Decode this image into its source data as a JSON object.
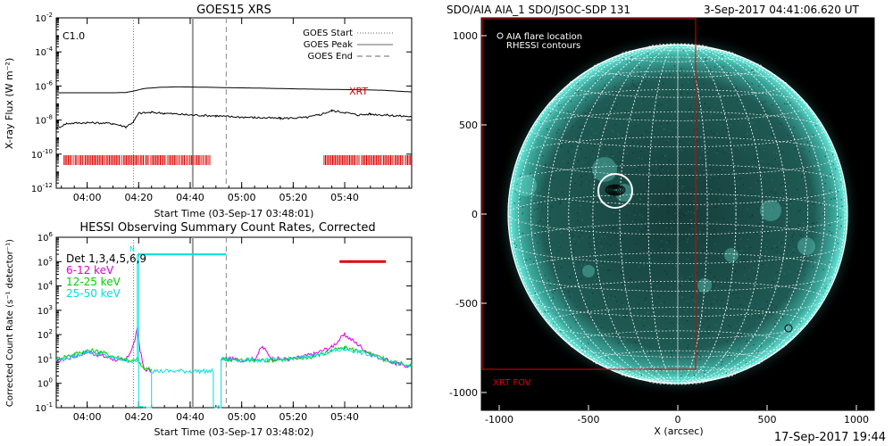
{
  "footer": {
    "timestamp": "17-Sep-2017 19:44"
  },
  "chart_data": [
    {
      "id": "goes",
      "type": "line",
      "title": "GOES15 XRS",
      "ylabel": "X-ray Flux (W m⁻²)",
      "xlabel": "Start Time (03-Sep-17 03:48:01)",
      "y_scale": "log",
      "ylim_exp": [
        -12,
        -2
      ],
      "y_tick_exponents": [
        -12,
        -10,
        -8,
        -6,
        -4,
        -2
      ],
      "xlim_min": [
        -12,
        126
      ],
      "x_ticks": [
        {
          "label": "04:00",
          "t": 0
        },
        {
          "label": "04:20",
          "t": 20
        },
        {
          "label": "04:40",
          "t": 40
        },
        {
          "label": "05:00",
          "t": 60
        },
        {
          "label": "05:20",
          "t": 80
        },
        {
          "label": "05:40",
          "t": 100
        }
      ],
      "flare_class": "C1.0",
      "legend": [
        "GOES Start",
        "GOES Peak",
        "GOES End"
      ],
      "markers": {
        "start": 18,
        "peak": 41,
        "end": 54
      },
      "xrt_label": "XRT",
      "xrt_intervals": [
        [
          -9,
          48
        ],
        [
          92,
          126
        ]
      ],
      "series": [
        {
          "name": "long",
          "color": "#000000",
          "x": [
            -12,
            0,
            10,
            15,
            18,
            22,
            28,
            35,
            45,
            55,
            65,
            75,
            85,
            95,
            105,
            115,
            120,
            126
          ],
          "y_exp": [
            -6.4,
            -6.4,
            -6.4,
            -6.38,
            -6.3,
            -6.15,
            -6.08,
            -6.05,
            -6.07,
            -6.1,
            -6.12,
            -6.15,
            -6.18,
            -6.2,
            -6.22,
            -6.25,
            -6.3,
            -6.35
          ]
        },
        {
          "name": "short",
          "color": "#000000",
          "x": [
            -12,
            -8,
            0,
            10,
            15,
            18,
            20,
            25,
            30,
            40,
            50,
            55,
            65,
            75,
            85,
            90,
            95,
            100,
            105,
            110,
            115,
            120,
            126
          ],
          "y_exp": [
            -8.5,
            -8.2,
            -8.15,
            -8.2,
            -8.4,
            -8.1,
            -7.6,
            -7.55,
            -7.6,
            -7.7,
            -7.75,
            -7.8,
            -7.85,
            -7.9,
            -7.85,
            -7.7,
            -7.45,
            -7.55,
            -7.7,
            -7.65,
            -7.7,
            -7.75,
            -7.8
          ]
        }
      ]
    },
    {
      "id": "hessi",
      "type": "line",
      "title": "HESSI Observing Summary Count Rates, Corrected",
      "ylabel": "Corrected Count Rate (s⁻¹ detector⁻¹)",
      "xlabel": "Start Time (03-Sep-17 03:48:02)",
      "y_scale": "log",
      "ylim_exp": [
        -1,
        6
      ],
      "y_tick_exponents": [
        -1,
        0,
        1,
        2,
        3,
        4,
        5,
        6
      ],
      "xlim_min": [
        -12,
        126
      ],
      "x_ticks": [
        {
          "label": "04:00",
          "t": 0
        },
        {
          "label": "04:20",
          "t": 20
        },
        {
          "label": "04:40",
          "t": 40
        },
        {
          "label": "05:00",
          "t": 60
        },
        {
          "label": "05:20",
          "t": 80
        },
        {
          "label": "05:40",
          "t": 100
        }
      ],
      "markers": {
        "start": 18,
        "peak": 41,
        "end": 54
      },
      "legend_lines": [
        {
          "text": "Det 1,3,4,5,6,9",
          "color": "#000000"
        },
        {
          "text": "6-12 keV",
          "color": "#e000e0"
        },
        {
          "text": "12-25 keV",
          "color": "#00d000"
        },
        {
          "text": "25-50 keV",
          "color": "#00e0e0"
        }
      ],
      "marker_letter": "N",
      "series": [
        {
          "name": "6-12 keV",
          "color": "#e000e0",
          "x": [
            -12,
            -5,
            0,
            5,
            10,
            15,
            18,
            19.5,
            20.5,
            22,
            25,
            25,
            52,
            52,
            55,
            60,
            65,
            68,
            72,
            80,
            88,
            95,
            100,
            105,
            110,
            115,
            120,
            126
          ],
          "y_exp": [
            0.9,
            1.1,
            1.3,
            1.15,
            1.0,
            0.9,
            1.6,
            2.2,
            1.4,
            0.6,
            0.5,
            null,
            null,
            1.0,
            1.0,
            0.95,
            1.0,
            1.5,
            1.0,
            1.0,
            1.2,
            1.5,
            2.0,
            1.6,
            1.2,
            1.0,
            0.8,
            0.7
          ]
        },
        {
          "name": "12-25 keV",
          "color": "#00d000",
          "x": [
            -12,
            -5,
            0,
            5,
            10,
            15,
            18,
            19.5,
            20.5,
            22,
            25,
            25,
            52,
            52,
            60,
            70,
            80,
            88,
            95,
            100,
            105,
            110,
            115,
            120,
            126
          ],
          "y_exp": [
            1.0,
            1.2,
            1.35,
            1.3,
            1.1,
            1.0,
            0.9,
            1.0,
            0.8,
            0.6,
            0.55,
            null,
            null,
            1.0,
            0.95,
            0.95,
            1.0,
            1.1,
            1.35,
            1.45,
            1.35,
            1.2,
            1.0,
            0.85,
            0.75
          ]
        },
        {
          "name": "25-50 keV",
          "color": "#00e0e0",
          "x": [
            -12,
            -5,
            0,
            5,
            10,
            15,
            18,
            19.5,
            19.5,
            20,
            20,
            25,
            25,
            40,
            49,
            49,
            52,
            52,
            60,
            70,
            80,
            88,
            95,
            100,
            105,
            110,
            115,
            120,
            126
          ],
          "y_exp": [
            0.95,
            1.1,
            1.3,
            1.2,
            1.05,
            0.95,
            0.9,
            0.9,
            5.3,
            5.3,
            -1,
            -1,
            0.5,
            0.5,
            0.5,
            -1,
            -1,
            1.0,
            0.95,
            0.95,
            1.0,
            1.15,
            1.3,
            1.4,
            1.3,
            1.15,
            1.0,
            0.85,
            0.75
          ]
        },
        {
          "name": "attenuator",
          "color": "#00e0e0",
          "x": [
            20,
            54
          ],
          "y_exp": [
            5.3,
            5.3
          ]
        }
      ],
      "red_bar": {
        "x": [
          98,
          116
        ],
        "y_exp": 5.0
      }
    },
    {
      "id": "aia",
      "type": "other",
      "title": "SDO/AIA AIA_1 SDO/JSOC-SDP 131",
      "timestamp": "3-Sep-2017 04:41:06.620 UT",
      "xlabel": "X (arcsec)",
      "xlim": [
        -1100,
        1100
      ],
      "ylim": [
        -1100,
        1100
      ],
      "x_ticks": [
        -1000,
        -500,
        0,
        500,
        1000
      ],
      "y_ticks": [
        -1000,
        -500,
        0,
        500,
        1000
      ],
      "legend": [
        "AIA flare location",
        "RHESSI contours"
      ],
      "flare_location": {
        "x": -350,
        "y": 130
      },
      "xrt_fov": {
        "label": "XRT FOV",
        "x": [
          -1100,
          100
        ],
        "y": [
          -870,
          1100
        ]
      },
      "sun_radius_arcsec": 950,
      "disk_color": "#1d4a46",
      "limb_color": "#5fdcd0"
    }
  ]
}
